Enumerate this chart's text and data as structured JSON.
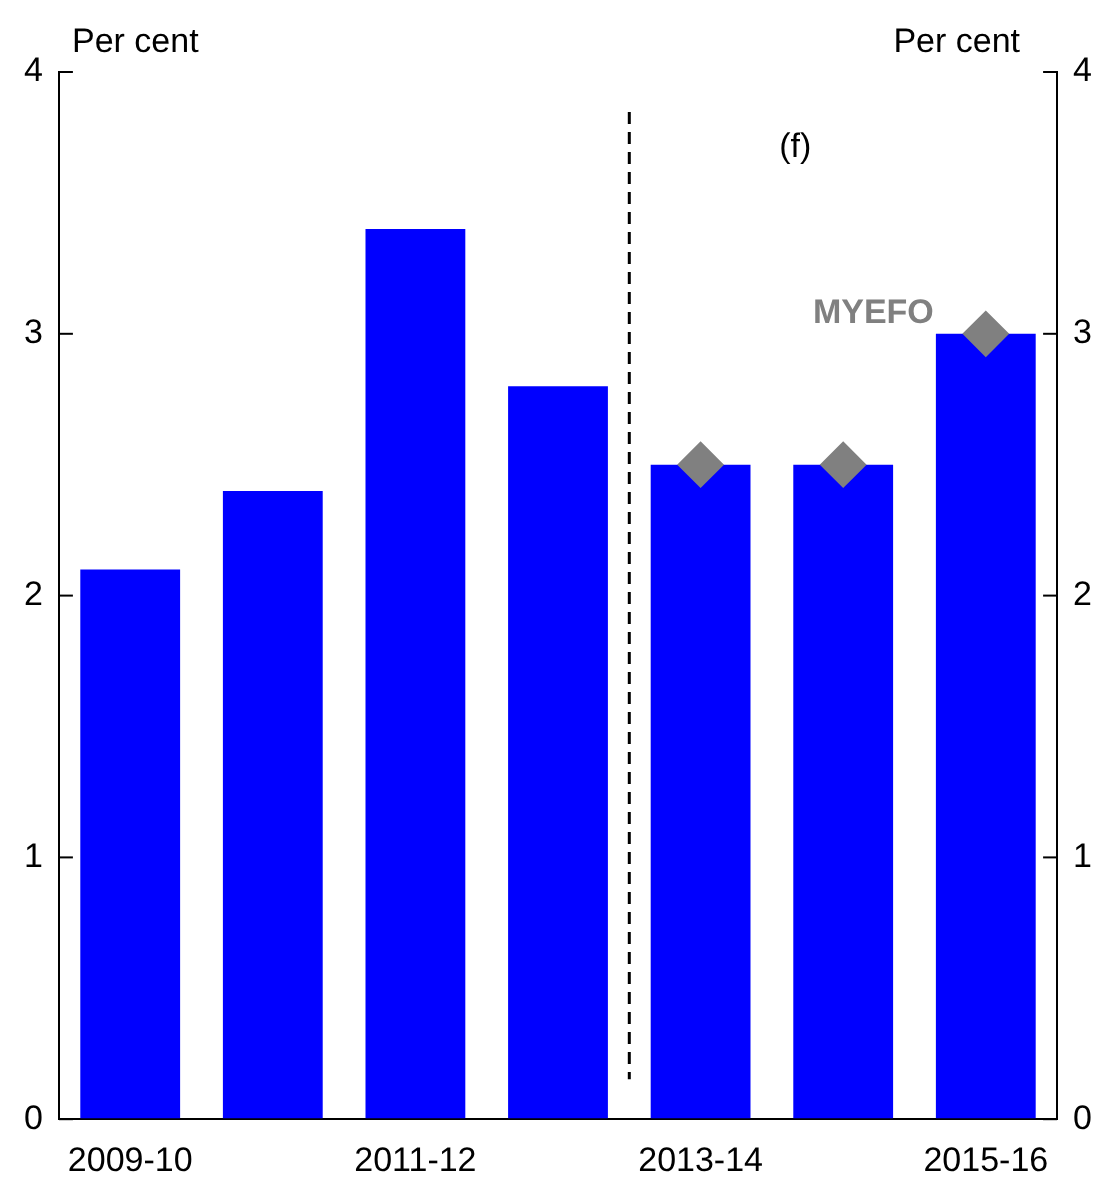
{
  "chart_data": {
    "type": "bar",
    "ylabel": "Per cent",
    "y2label": "Per cent",
    "categories": [
      "2009-10",
      null,
      "2011-12",
      null,
      "2013-14",
      null,
      "2015-16"
    ],
    "series": [
      {
        "color": "#0000ff",
        "values": [
          2.1,
          2.4,
          3.4,
          2.8,
          2.5,
          2.5,
          3.0
        ]
      },
      {
        "type": "scatter",
        "name": "MYEFO",
        "color": "#808080",
        "marker": "diamond",
        "values": [
          null,
          null,
          null,
          null,
          2.5,
          2.5,
          3.0
        ]
      }
    ],
    "ylim": [
      0,
      4
    ],
    "yticks": [
      0,
      1,
      2,
      3,
      4
    ],
    "y2lim": [
      0,
      4
    ],
    "y2ticks": [
      0,
      1,
      2,
      3,
      4
    ],
    "annotations": [
      "(f)"
    ],
    "grid": false,
    "legend": false
  }
}
